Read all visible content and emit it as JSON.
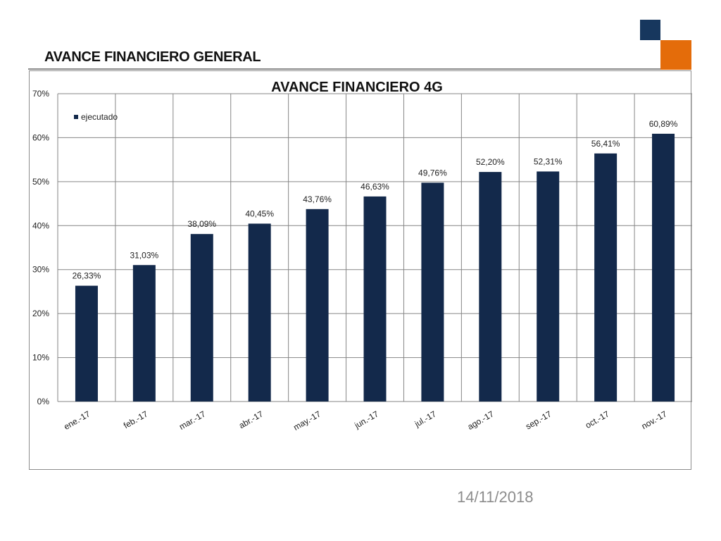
{
  "slide": {
    "title": "AVANCE FINANCIERO GENERAL",
    "date": "14/11/2018"
  },
  "colors": {
    "bar": "#13294b",
    "accent_navy": "#17375e",
    "accent_orange": "#e46c0a",
    "grid": "#868686"
  },
  "chart_data": {
    "type": "bar",
    "title": "AVANCE FINANCIERO 4G",
    "xlabel": "",
    "ylabel": "",
    "categories": [
      "ene.-17",
      "feb.-17",
      "mar.-17",
      "abr.-17",
      "may.-17",
      "jun.-17",
      "jul.-17",
      "ago.-17",
      "sep.-17",
      "oct.-17",
      "nov.-17"
    ],
    "series": [
      {
        "name": "ejecutado",
        "values": [
          26.33,
          31.03,
          38.09,
          40.45,
          43.76,
          46.63,
          49.76,
          52.2,
          52.31,
          56.41,
          60.89
        ],
        "labels": [
          "26,33%",
          "31,03%",
          "38,09%",
          "40,45%",
          "43,76%",
          "46,63%",
          "49,76%",
          "52,20%",
          "52,31%",
          "56,41%",
          "60,89%"
        ]
      }
    ],
    "ylim": [
      0,
      70
    ],
    "yticks": [
      0,
      10,
      20,
      30,
      40,
      50,
      60,
      70
    ],
    "ytick_labels": [
      "0%",
      "10%",
      "20%",
      "30%",
      "40%",
      "50%",
      "60%",
      "70%"
    ],
    "grid": true,
    "legend_position": "top-left"
  }
}
